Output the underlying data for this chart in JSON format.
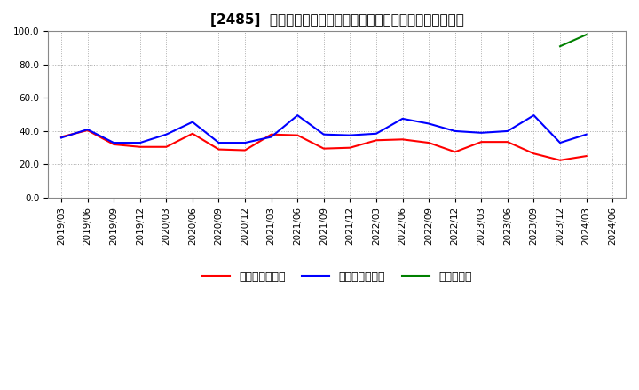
{
  "title": "[2485]  売上債権回転率、買入債務回転率、在庫回転率の推移",
  "x_labels": [
    "2019/03",
    "2019/06",
    "2019/09",
    "2019/12",
    "2020/03",
    "2020/06",
    "2020/09",
    "2020/12",
    "2021/03",
    "2021/06",
    "2021/09",
    "2021/12",
    "2022/03",
    "2022/06",
    "2022/09",
    "2022/12",
    "2023/03",
    "2023/06",
    "2023/09",
    "2023/12",
    "2024/03",
    "2024/06"
  ],
  "receivables_turnover": [
    36.5,
    40.5,
    32.0,
    30.5,
    30.5,
    38.5,
    29.0,
    28.5,
    38.0,
    37.5,
    29.5,
    30.0,
    34.5,
    35.0,
    33.0,
    27.5,
    33.5,
    33.5,
    26.5,
    22.5,
    25.0,
    null
  ],
  "payables_turnover": [
    36.0,
    41.0,
    33.0,
    33.0,
    38.0,
    45.5,
    33.0,
    33.0,
    36.5,
    49.5,
    38.0,
    37.5,
    38.5,
    47.5,
    44.5,
    40.0,
    39.0,
    40.0,
    49.5,
    33.0,
    38.0,
    null
  ],
  "inventory_turnover": [
    null,
    null,
    null,
    null,
    null,
    null,
    null,
    null,
    null,
    null,
    null,
    null,
    null,
    null,
    null,
    null,
    null,
    null,
    null,
    91.0,
    98.0,
    null
  ],
  "ylim": [
    0,
    100
  ],
  "yticks": [
    0.0,
    20.0,
    40.0,
    60.0,
    80.0,
    100.0
  ],
  "line_colors": {
    "receivables": "#ff0000",
    "payables": "#0000ff",
    "inventory": "#008000"
  },
  "legend_labels": [
    "売上債権回転率",
    "買入債務回転率",
    "在庫回転率"
  ],
  "bg_color": "#ffffff",
  "grid_color": "#aaaaaa",
  "title_fontsize": 11,
  "tick_fontsize": 7.5,
  "legend_fontsize": 9
}
